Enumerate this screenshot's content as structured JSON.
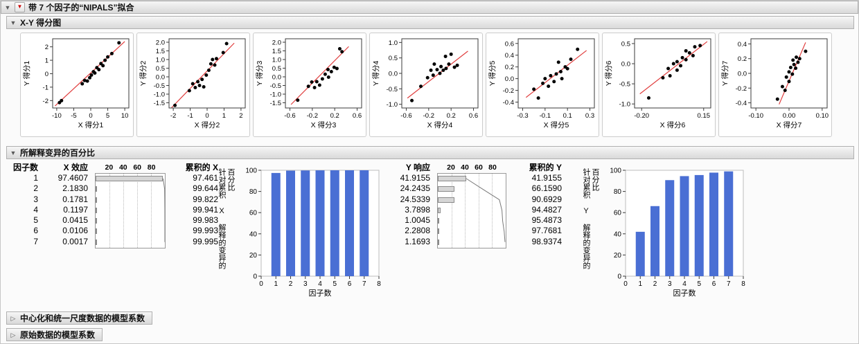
{
  "outline": {
    "root_title": "带 7 个因子的“NIPALS”拟合",
    "scores_title": "X-Y 得分图",
    "variation_title": "所解释变异的百分比",
    "collapsed_sections": [
      "中心化和统一尺度数据的模型系数",
      "原始数据的模型系数"
    ]
  },
  "icons": {
    "disclosure_open": "▼",
    "disclosure_closed": "▷",
    "red_triangle": "▼"
  },
  "colors": {
    "bar_fill": "#4a6fd4",
    "point": "#000000",
    "fit_line": "#e03c3c",
    "mini_bar_fill": "#d6d6d6",
    "mini_bar_border": "#8a8a8a",
    "cumulative_line": "#787878"
  },
  "chart_data": {
    "score_plots": [
      {
        "type": "scatter",
        "xlabel": "X 得分1",
        "ylabel": "Y 得分1",
        "xlim": [
          -11.2,
          11.2
        ],
        "ylim": [
          -2.55,
          2.6
        ],
        "xticks": [
          "-10",
          "-5",
          "0",
          "5",
          "10"
        ],
        "yticks": [
          "-2",
          "-1",
          "0",
          "1",
          "2"
        ],
        "points": [
          [
            -9.2,
            -2.15
          ],
          [
            -8.6,
            -2.0
          ],
          [
            -2.5,
            -0.75
          ],
          [
            -1.8,
            -0.5
          ],
          [
            -1.0,
            -0.55
          ],
          [
            -0.3,
            -0.3
          ],
          [
            0.2,
            -0.1
          ],
          [
            0.8,
            0.15
          ],
          [
            1.2,
            0.05
          ],
          [
            1.8,
            0.45
          ],
          [
            2.4,
            0.3
          ],
          [
            3.0,
            0.75
          ],
          [
            3.6,
            0.6
          ],
          [
            4.2,
            1.0
          ],
          [
            5.0,
            1.25
          ],
          [
            6.2,
            1.5
          ],
          [
            8.3,
            2.3
          ]
        ],
        "fit_line": [
          [
            -10.5,
            -2.4
          ],
          [
            10.0,
            2.4
          ]
        ]
      },
      {
        "type": "scatter",
        "xlabel": "X 得分2",
        "ylabel": "Y 得分2",
        "xlim": [
          -2.25,
          2.25
        ],
        "ylim": [
          -1.8,
          2.2
        ],
        "xticks": [
          "-2",
          "-1",
          "0",
          "1",
          "2"
        ],
        "yticks": [
          "-1.5",
          "-1.0",
          "-0.5",
          "0.0",
          "0.5",
          "1.0",
          "1.5",
          "2.0"
        ],
        "points": [
          [
            -1.9,
            -1.65
          ],
          [
            -1.05,
            -0.8
          ],
          [
            -0.85,
            -0.4
          ],
          [
            -0.7,
            -0.62
          ],
          [
            -0.55,
            -0.28
          ],
          [
            -0.45,
            -0.5
          ],
          [
            -0.3,
            -0.15
          ],
          [
            -0.2,
            -0.58
          ],
          [
            -0.05,
            0.1
          ],
          [
            0.1,
            0.38
          ],
          [
            0.22,
            0.75
          ],
          [
            0.32,
            1.0
          ],
          [
            0.45,
            0.68
          ],
          [
            0.55,
            1.05
          ],
          [
            0.95,
            1.4
          ],
          [
            1.15,
            1.92
          ]
        ],
        "fit_line": [
          [
            -2.1,
            -1.78
          ],
          [
            1.6,
            1.95
          ]
        ]
      },
      {
        "type": "scatter",
        "xlabel": "X 得分3",
        "ylabel": "Y 得分3",
        "xlim": [
          -0.68,
          0.68
        ],
        "ylim": [
          -1.8,
          2.2
        ],
        "xticks": [
          "-0.6",
          "-0.2",
          "0.2",
          "0.6"
        ],
        "yticks": [
          "-1.5",
          "-1.0",
          "-0.5",
          "0.0",
          "0.5",
          "1.0",
          "1.5",
          "2.0"
        ],
        "points": [
          [
            -0.46,
            -1.35
          ],
          [
            -0.27,
            -0.55
          ],
          [
            -0.21,
            -0.3
          ],
          [
            -0.16,
            -0.62
          ],
          [
            -0.12,
            -0.28
          ],
          [
            -0.07,
            -0.48
          ],
          [
            -0.02,
            -0.12
          ],
          [
            0.03,
            0.15
          ],
          [
            0.08,
            0.42
          ],
          [
            0.09,
            -0.02
          ],
          [
            0.14,
            0.3
          ],
          [
            0.19,
            0.55
          ],
          [
            0.24,
            0.48
          ],
          [
            0.29,
            1.62
          ],
          [
            0.33,
            1.45
          ]
        ],
        "fit_line": [
          [
            -0.58,
            -1.6
          ],
          [
            0.45,
            1.75
          ]
        ]
      },
      {
        "type": "scatter",
        "xlabel": "X 得分4",
        "ylabel": "Y 得分4",
        "xlim": [
          -0.68,
          0.68
        ],
        "ylim": [
          -1.12,
          1.12
        ],
        "xticks": [
          "-0.6",
          "-0.2",
          "0.2",
          "0.6"
        ],
        "yticks": [
          "-1.0",
          "-0.5",
          "0.0",
          "0.5",
          "1.0"
        ],
        "points": [
          [
            -0.5,
            -0.88
          ],
          [
            -0.34,
            -0.42
          ],
          [
            -0.22,
            -0.14
          ],
          [
            -0.16,
            0.1
          ],
          [
            -0.12,
            -0.06
          ],
          [
            -0.1,
            0.3
          ],
          [
            -0.05,
            0.12
          ],
          [
            0.0,
            0.0
          ],
          [
            0.02,
            0.22
          ],
          [
            0.06,
            0.1
          ],
          [
            0.1,
            0.55
          ],
          [
            0.11,
            0.16
          ],
          [
            0.16,
            0.3
          ],
          [
            0.2,
            0.62
          ],
          [
            0.26,
            0.2
          ],
          [
            0.31,
            0.26
          ]
        ],
        "fit_line": [
          [
            -0.58,
            -0.8
          ],
          [
            0.5,
            0.72
          ]
        ]
      },
      {
        "type": "scatter",
        "xlabel": "X 得分5",
        "ylabel": "Y 得分5",
        "xlim": [
          -0.34,
          0.34
        ],
        "ylim": [
          -0.5,
          0.68
        ],
        "xticks": [
          "-0.3",
          "-0.1",
          "0.1",
          "0.3"
        ],
        "yticks": [
          "-0.4",
          "-0.2",
          "0.0",
          "0.2",
          "0.4",
          "0.6"
        ],
        "points": [
          [
            -0.2,
            -0.18
          ],
          [
            -0.16,
            -0.33
          ],
          [
            -0.12,
            -0.08
          ],
          [
            -0.1,
            0.0
          ],
          [
            -0.07,
            -0.13
          ],
          [
            -0.05,
            0.05
          ],
          [
            -0.02,
            -0.05
          ],
          [
            0.0,
            0.08
          ],
          [
            0.02,
            0.28
          ],
          [
            0.04,
            0.12
          ],
          [
            0.05,
            0.0
          ],
          [
            0.08,
            0.2
          ],
          [
            0.1,
            0.17
          ],
          [
            0.13,
            0.33
          ],
          [
            0.19,
            0.5
          ]
        ],
        "fit_line": [
          [
            -0.27,
            -0.32
          ],
          [
            0.27,
            0.48
          ]
        ]
      },
      {
        "type": "scatter",
        "xlabel": "X 得分6",
        "ylabel": "Y 得分6",
        "xlim": [
          -0.24,
          0.19
        ],
        "ylim": [
          -1.1,
          0.62
        ],
        "xticks": [
          "-0.20",
          "0.15"
        ],
        "yticks": [
          "-1.0",
          "-0.5",
          "0.0",
          "0.5"
        ],
        "points": [
          [
            -0.16,
            -0.85
          ],
          [
            -0.08,
            -0.35
          ],
          [
            -0.05,
            -0.12
          ],
          [
            -0.04,
            -0.3
          ],
          [
            -0.02,
            0.0
          ],
          [
            0.0,
            -0.16
          ],
          [
            0.0,
            0.05
          ],
          [
            0.02,
            -0.05
          ],
          [
            0.03,
            0.15
          ],
          [
            0.05,
            0.1
          ],
          [
            0.05,
            0.32
          ],
          [
            0.07,
            0.27
          ],
          [
            0.09,
            0.2
          ],
          [
            0.1,
            0.42
          ],
          [
            0.13,
            0.45
          ]
        ],
        "fit_line": [
          [
            -0.21,
            -0.75
          ],
          [
            0.17,
            0.55
          ]
        ]
      },
      {
        "type": "scatter",
        "xlabel": "X 得分7",
        "ylabel": "Y 得分7",
        "xlim": [
          -0.115,
          0.115
        ],
        "ylim": [
          -0.47,
          0.47
        ],
        "xticks": [
          "-0.10",
          "0.00",
          "0.10"
        ],
        "yticks": [
          "-0.4",
          "-0.2",
          "0.0",
          "0.2",
          "0.4"
        ],
        "points": [
          [
            -0.035,
            -0.35
          ],
          [
            -0.02,
            -0.18
          ],
          [
            -0.012,
            -0.23
          ],
          [
            -0.008,
            -0.05
          ],
          [
            0.0,
            -0.11
          ],
          [
            0.0,
            0.02
          ],
          [
            0.005,
            0.08
          ],
          [
            0.01,
            -0.01
          ],
          [
            0.012,
            0.18
          ],
          [
            0.015,
            0.12
          ],
          [
            0.02,
            0.07
          ],
          [
            0.022,
            0.22
          ],
          [
            0.027,
            0.15
          ],
          [
            0.032,
            0.2
          ],
          [
            0.05,
            0.3
          ]
        ],
        "fit_line": [
          [
            -0.03,
            -0.42
          ],
          [
            0.05,
            0.42
          ]
        ]
      }
    ],
    "variation_table": {
      "factor_header": "因子数",
      "x_effect_header": "X 效应",
      "cum_x_header": "累积的 X",
      "y_resp_header": "Y 响应",
      "cum_y_header": "累积的 Y",
      "scale_ticks": [
        20,
        40,
        60,
        80
      ],
      "factors": [
        "1",
        "2",
        "3",
        "4",
        "5",
        "6",
        "7"
      ],
      "x_effect": [
        "97.4607",
        "2.1830",
        "0.1781",
        "0.1197",
        "0.0415",
        "0.0106",
        "0.0017"
      ],
      "cum_x": [
        "97.461",
        "99.644",
        "99.822",
        "99.941",
        "99.983",
        "99.993",
        "99.995"
      ],
      "y_resp": [
        "41.9155",
        "24.2435",
        "24.5339",
        "3.7898",
        "1.0045",
        "2.2808",
        "1.1693"
      ],
      "cum_y": [
        "41.9155",
        "66.1590",
        "90.6929",
        "94.4827",
        "95.4873",
        "97.7681",
        "98.9374"
      ]
    },
    "cumulative_bar_charts": [
      {
        "type": "bar",
        "ylabel": "针对累积 X 解释的变异的百分比",
        "xlabel": "因子数",
        "categories": [
          1,
          2,
          3,
          4,
          5,
          6,
          7
        ],
        "values": [
          97.461,
          99.644,
          99.822,
          99.941,
          99.983,
          99.993,
          99.995
        ],
        "ylim": [
          0,
          100
        ],
        "yticks": [
          0,
          20,
          40,
          60,
          80,
          100
        ],
        "xlim": [
          0,
          8
        ],
        "xticks": [
          0,
          1,
          2,
          3,
          4,
          5,
          6,
          7,
          8
        ]
      },
      {
        "type": "bar",
        "ylabel": "针对累积 Y 解释的变异的百分比",
        "xlabel": "因子数",
        "categories": [
          1,
          2,
          3,
          4,
          5,
          6,
          7
        ],
        "values": [
          41.9155,
          66.159,
          90.6929,
          94.4827,
          95.4873,
          97.7681,
          98.9374
        ],
        "ylim": [
          0,
          100
        ],
        "yticks": [
          0,
          20,
          40,
          60,
          80,
          100
        ],
        "xlim": [
          0,
          8
        ],
        "xticks": [
          0,
          1,
          2,
          3,
          4,
          5,
          6,
          7,
          8
        ]
      }
    ]
  }
}
